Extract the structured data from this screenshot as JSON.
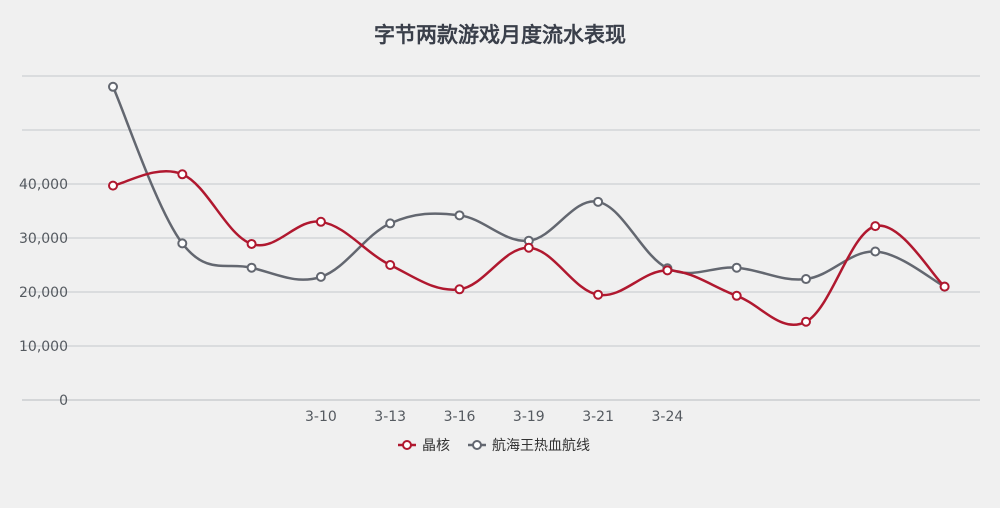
{
  "chart_data": {
    "type": "line",
    "title": "字节两款游戏月度流水表现",
    "xlabel": "",
    "ylabel": "",
    "categories": [
      "",
      "",
      "",
      "3-10",
      "3-13",
      "3-16",
      "3-19",
      "3-21",
      "3-24",
      "",
      "",
      "",
      ""
    ],
    "ylim": [
      0,
      60000
    ],
    "y_ticks": [
      0,
      10000,
      20000,
      30000,
      40000
    ],
    "y_tick_labels": [
      "0",
      "10,000",
      "20,000",
      "30,000",
      "40,000"
    ],
    "grid": true,
    "legend_position": "bottom",
    "series": [
      {
        "name": "晶核",
        "color": "#b0182f",
        "values": [
          39700,
          41800,
          28900,
          33000,
          25000,
          20500,
          28200,
          19500,
          24000,
          19300,
          14500,
          32200,
          21000
        ]
      },
      {
        "name": "航海王热血航线",
        "color": "#636770",
        "values": [
          58000,
          29000,
          24500,
          22800,
          32700,
          34200,
          29500,
          36700,
          24400,
          24500,
          22400,
          27500,
          21000
        ]
      }
    ]
  }
}
